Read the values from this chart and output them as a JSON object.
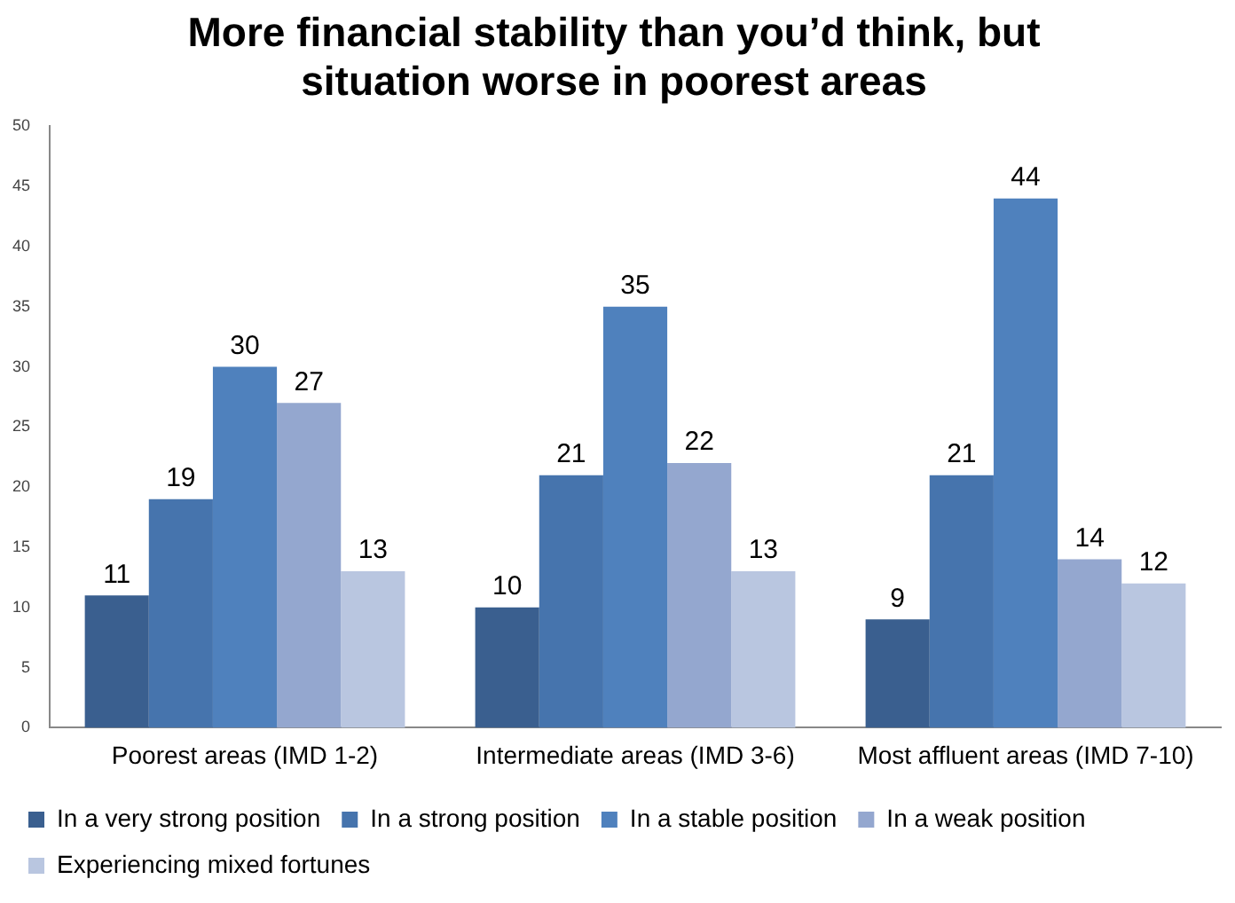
{
  "chart_data": {
    "type": "bar",
    "title": "More financial stability than you’d think, but situation worse in poorest areas",
    "categories": [
      "Poorest areas (IMD 1-2)",
      "Intermediate areas (IMD 3-6)",
      "Most affluent areas (IMD 7-10)"
    ],
    "series": [
      {
        "name": "In a very strong position",
        "color": "#3a5f8f",
        "values": [
          11,
          10,
          9
        ]
      },
      {
        "name": "In a strong position",
        "color": "#4674ad",
        "values": [
          19,
          21,
          21
        ]
      },
      {
        "name": "In a stable position",
        "color": "#4f81bd",
        "values": [
          30,
          35,
          44
        ]
      },
      {
        "name": "In a weak position",
        "color": "#94a7cf",
        "values": [
          27,
          22,
          14
        ]
      },
      {
        "name": "Experiencing mixed fortunes",
        "color": "#b9c6e0",
        "values": [
          13,
          13,
          12
        ]
      }
    ],
    "ylim": [
      0,
      50
    ],
    "yticks": [
      0,
      5,
      10,
      15,
      20,
      25,
      30,
      35,
      40,
      45,
      50
    ],
    "grid": false,
    "legend": "bottom",
    "data_labels": true
  }
}
